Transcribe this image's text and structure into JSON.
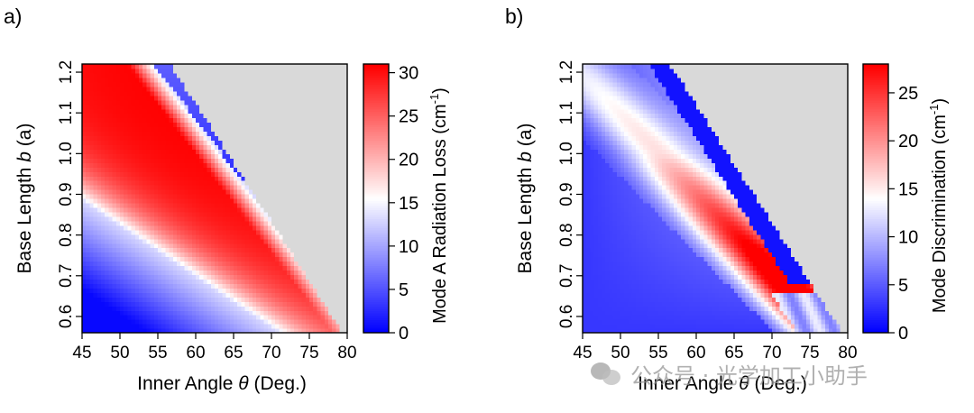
{
  "chart_data": [
    {
      "type": "heatmap",
      "panel_label": "a)",
      "xlabel": "Inner Angle θ (Deg.)",
      "ylabel": "Base Length b (a)",
      "xlabel_parts": {
        "main": "Inner Angle ",
        "sym": "θ",
        "unit": " (Deg.)"
      },
      "ylabel_parts": {
        "main": "Base Length ",
        "sym": "b",
        "unit": " (a)"
      },
      "xlim": [
        45,
        80
      ],
      "ylim": [
        0.56,
        1.22
      ],
      "x_ticks": [
        "45",
        "50",
        "55",
        "60",
        "65",
        "70",
        "75",
        "80"
      ],
      "y_ticks": [
        "0.6",
        "0.7",
        "0.8",
        "0.9",
        "1.0",
        "1.1",
        "1.2"
      ],
      "x_tick_values": [
        45,
        50,
        55,
        60,
        65,
        70,
        75,
        80
      ],
      "y_tick_values": [
        0.6,
        0.7,
        0.8,
        0.9,
        1.0,
        1.1,
        1.2
      ],
      "colorbar_label": "Mode A Radiation Loss (cm",
      "colorbar_label_sup": "-1",
      "colorbar_label_end": ")",
      "colorbar_range": [
        0,
        31
      ],
      "colorbar_ticks": [
        "0",
        "5",
        "10",
        "15",
        "20",
        "25",
        "30"
      ],
      "colorbar_tick_values": [
        0,
        5,
        10,
        15,
        20,
        25,
        30
      ],
      "colormap": [
        "#0000ff",
        "#ffffff",
        "#ff0000"
      ],
      "no_data_color": "#d9d9d9",
      "feature": "red maximum ~31 near θ=57, b=1.0; low-loss band near θ=67–70; no data beyond right diagonal boundary"
    },
    {
      "type": "heatmap",
      "panel_label": "b)",
      "xlabel": "Inner Angle θ (Deg.)",
      "ylabel": "Base Length b (a)",
      "xlabel_parts": {
        "main": "Inner Angle ",
        "sym": "θ",
        "unit": " (Deg.)"
      },
      "ylabel_parts": {
        "main": "Base Length ",
        "sym": "b",
        "unit": " (a)"
      },
      "xlim": [
        45,
        80
      ],
      "ylim": [
        0.56,
        1.22
      ],
      "x_ticks": [
        "45",
        "50",
        "55",
        "60",
        "65",
        "70",
        "75",
        "80"
      ],
      "y_ticks": [
        "0.6",
        "0.7",
        "0.8",
        "0.9",
        "1.0",
        "1.1",
        "1.2"
      ],
      "x_tick_values": [
        45,
        50,
        55,
        60,
        65,
        70,
        75,
        80
      ],
      "y_tick_values": [
        0.6,
        0.7,
        0.8,
        0.9,
        1.0,
        1.1,
        1.2
      ],
      "colorbar_label": "Mode Discrimination (cm",
      "colorbar_label_sup": "-1",
      "colorbar_label_end": ")",
      "colorbar_range": [
        0,
        28
      ],
      "colorbar_ticks": [
        "0",
        "5",
        "10",
        "15",
        "20",
        "25"
      ],
      "colorbar_tick_values": [
        0,
        5,
        10,
        15,
        20,
        25
      ],
      "colormap": [
        "#0000ff",
        "#ffffff",
        "#ff0000"
      ],
      "no_data_color": "#d9d9d9",
      "feature": "mostly blue; diagonal band rising to ~28 near θ=71, b=0.75"
    }
  ],
  "watermark": {
    "icon": "wechat-icon",
    "text": "公众号 · 光学加工小助手"
  }
}
